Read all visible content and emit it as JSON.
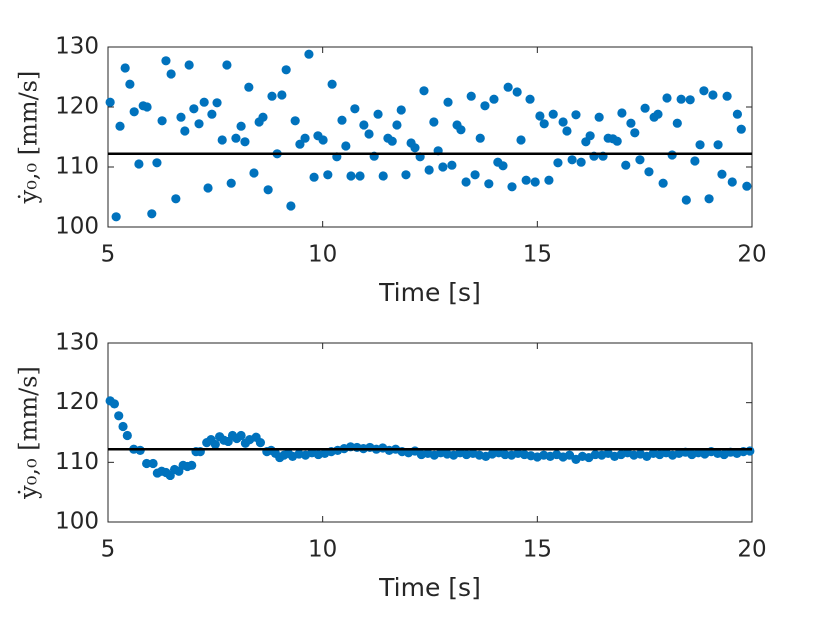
{
  "chart_data": [
    {
      "type": "scatter",
      "xlabel": "Time [s]",
      "ylabel": "ẏ₀,₀ [mm/s]",
      "color": "#0072bd",
      "reference_line": 112.2,
      "reference_color": "#000000",
      "xlim": [
        5,
        20
      ],
      "xticks": [
        5,
        10,
        15,
        20
      ],
      "ylim": [
        100,
        130
      ],
      "yticks": [
        100,
        110,
        120,
        130
      ],
      "x": [
        5.05,
        5.19,
        5.28,
        5.4,
        5.51,
        5.61,
        5.72,
        5.82,
        5.91,
        6.02,
        6.14,
        6.26,
        6.35,
        6.47,
        6.58,
        6.7,
        6.79,
        6.89,
        7.0,
        7.12,
        7.24,
        7.33,
        7.42,
        7.54,
        7.66,
        7.77,
        7.87,
        7.98,
        8.1,
        8.19,
        8.28,
        8.4,
        8.52,
        8.61,
        8.73,
        8.82,
        8.94,
        9.05,
        9.15,
        9.26,
        9.36,
        9.47,
        9.59,
        9.68,
        9.8,
        9.89,
        10.01,
        10.12,
        10.22,
        10.33,
        10.45,
        10.54,
        10.66,
        10.75,
        10.87,
        10.96,
        11.08,
        11.2,
        11.29,
        11.41,
        11.52,
        11.62,
        11.73,
        11.83,
        11.94,
        12.06,
        12.15,
        12.27,
        12.36,
        12.48,
        12.59,
        12.69,
        12.8,
        12.92,
        13.01,
        13.13,
        13.22,
        13.34,
        13.46,
        13.55,
        13.67,
        13.78,
        13.87,
        13.99,
        14.08,
        14.2,
        14.32,
        14.41,
        14.53,
        14.62,
        14.74,
        14.83,
        14.95,
        15.06,
        15.16,
        15.27,
        15.37,
        15.48,
        15.6,
        15.69,
        15.81,
        15.9,
        16.02,
        16.13,
        16.23,
        16.32,
        16.44,
        16.53,
        16.65,
        16.76,
        16.86,
        16.97,
        17.06,
        17.18,
        17.27,
        17.39,
        17.51,
        17.6,
        17.72,
        17.81,
        17.93,
        18.02,
        18.14,
        18.26,
        18.35,
        18.47,
        18.56,
        18.67,
        18.79,
        18.88,
        19.0,
        19.09,
        19.21,
        19.3,
        19.42,
        19.54,
        19.66,
        19.75,
        19.88
      ],
      "values": [
        120.8,
        101.7,
        116.8,
        126.5,
        123.8,
        119.2,
        110.5,
        120.2,
        120,
        102.2,
        110.7,
        117.7,
        127.7,
        125.5,
        104.7,
        118.3,
        116,
        127,
        119.7,
        117.2,
        120.8,
        106.5,
        118.8,
        120.7,
        114.5,
        127,
        107.3,
        114.8,
        116.8,
        114.2,
        123.3,
        109,
        117.5,
        118.3,
        106.2,
        121.8,
        112.2,
        122,
        126.2,
        103.5,
        117.7,
        113.8,
        114.8,
        128.8,
        108.3,
        115.2,
        114.5,
        108.7,
        123.8,
        111.7,
        117.8,
        113.5,
        108.5,
        119.7,
        108.5,
        117,
        115.5,
        111.8,
        118.8,
        108.5,
        114.8,
        114.3,
        117,
        119.5,
        108.7,
        114,
        113.2,
        111.7,
        122.7,
        109.5,
        117.5,
        112.7,
        110,
        120.8,
        110.3,
        117,
        116.2,
        107.5,
        121.8,
        108.7,
        114.8,
        120.2,
        107.2,
        121.3,
        110.8,
        110.2,
        123.3,
        106.7,
        122.5,
        114.5,
        107.8,
        121.3,
        107.5,
        118.5,
        117.2,
        107.8,
        118.8,
        110.7,
        117.5,
        116,
        111.2,
        118.7,
        110.8,
        114.2,
        115.2,
        111.8,
        118.3,
        111.8,
        114.8,
        114.7,
        114.3,
        119,
        110.3,
        117.3,
        115.7,
        111.2,
        119.8,
        109.2,
        118.3,
        118.8,
        107.3,
        121.5,
        112,
        117.3,
        121.3,
        104.5,
        121.2,
        111,
        113.7,
        122.7,
        104.7,
        122,
        113.7,
        108.8,
        121.8,
        107.5,
        118.8,
        116.3,
        106.8
      ]
    },
    {
      "type": "scatter",
      "xlabel": "Time [s]",
      "ylabel": "ẏ₀,₀ [mm/s]",
      "color": "#0072bd",
      "reference_line": 112.2,
      "reference_color": "#000000",
      "xlim": [
        5,
        20
      ],
      "xticks": [
        5,
        10,
        15,
        20
      ],
      "ylim": [
        100,
        130
      ],
      "yticks": [
        100,
        110,
        120,
        130
      ],
      "x": [
        5.05,
        5.15,
        5.25,
        5.35,
        5.45,
        5.6,
        5.75,
        5.9,
        6.05,
        6.15,
        6.25,
        6.35,
        6.45,
        6.55,
        6.65,
        6.75,
        6.85,
        6.95,
        7.05,
        7.15,
        7.3,
        7.4,
        7.5,
        7.6,
        7.7,
        7.8,
        7.9,
        8.0,
        8.1,
        8.2,
        8.3,
        8.45,
        8.55,
        8.7,
        8.8,
        8.9,
        9.0,
        9.1,
        9.2,
        9.3,
        9.45,
        9.6,
        9.75,
        9.9,
        10.05,
        10.2,
        10.35,
        10.5,
        10.65,
        10.8,
        10.95,
        11.1,
        11.25,
        11.4,
        11.55,
        11.7,
        11.85,
        12.0,
        12.15,
        12.3,
        12.45,
        12.6,
        12.75,
        12.9,
        13.05,
        13.2,
        13.35,
        13.5,
        13.65,
        13.8,
        13.95,
        14.1,
        14.25,
        14.4,
        14.55,
        14.7,
        14.85,
        15.0,
        15.15,
        15.3,
        15.45,
        15.6,
        15.75,
        15.9,
        16.05,
        16.2,
        16.35,
        16.5,
        16.65,
        16.8,
        16.95,
        17.1,
        17.25,
        17.4,
        17.55,
        17.7,
        17.85,
        18.0,
        18.15,
        18.3,
        18.45,
        18.6,
        18.75,
        18.9,
        19.05,
        19.2,
        19.35,
        19.5,
        19.65,
        19.8,
        19.95
      ],
      "values": [
        120.3,
        119.8,
        117.8,
        116.0,
        114.5,
        112.2,
        112.0,
        109.8,
        109.8,
        108.2,
        108.5,
        108.3,
        107.8,
        108.8,
        108.5,
        109.5,
        109.3,
        109.5,
        111.8,
        111.8,
        113.3,
        113.8,
        113.0,
        114.3,
        113.7,
        113.5,
        114.5,
        114.0,
        114.5,
        113.2,
        113.8,
        114.2,
        113.3,
        111.8,
        112.0,
        111.5,
        110.8,
        111.2,
        111.5,
        111.0,
        111.4,
        111.2,
        111.6,
        111.3,
        111.5,
        111.8,
        112.0,
        112.3,
        112.6,
        112.5,
        112.3,
        112.5,
        112.2,
        112.4,
        112.0,
        112.2,
        111.8,
        111.6,
        111.9,
        111.3,
        111.5,
        111.2,
        111.6,
        111.4,
        111.2,
        111.6,
        111.3,
        111.5,
        111.2,
        111.0,
        111.4,
        111.6,
        111.3,
        111.2,
        111.5,
        111.3,
        111.1,
        110.9,
        111.2,
        111.0,
        111.3,
        110.9,
        111.2,
        110.5,
        111.0,
        110.8,
        111.3,
        111.2,
        111.5,
        111.0,
        111.3,
        111.6,
        111.2,
        111.4,
        111.0,
        111.5,
        111.3,
        111.6,
        111.2,
        111.5,
        111.7,
        111.3,
        111.6,
        111.4,
        111.8,
        111.5,
        111.3,
        111.7,
        111.5,
        111.8,
        111.9
      ]
    }
  ]
}
